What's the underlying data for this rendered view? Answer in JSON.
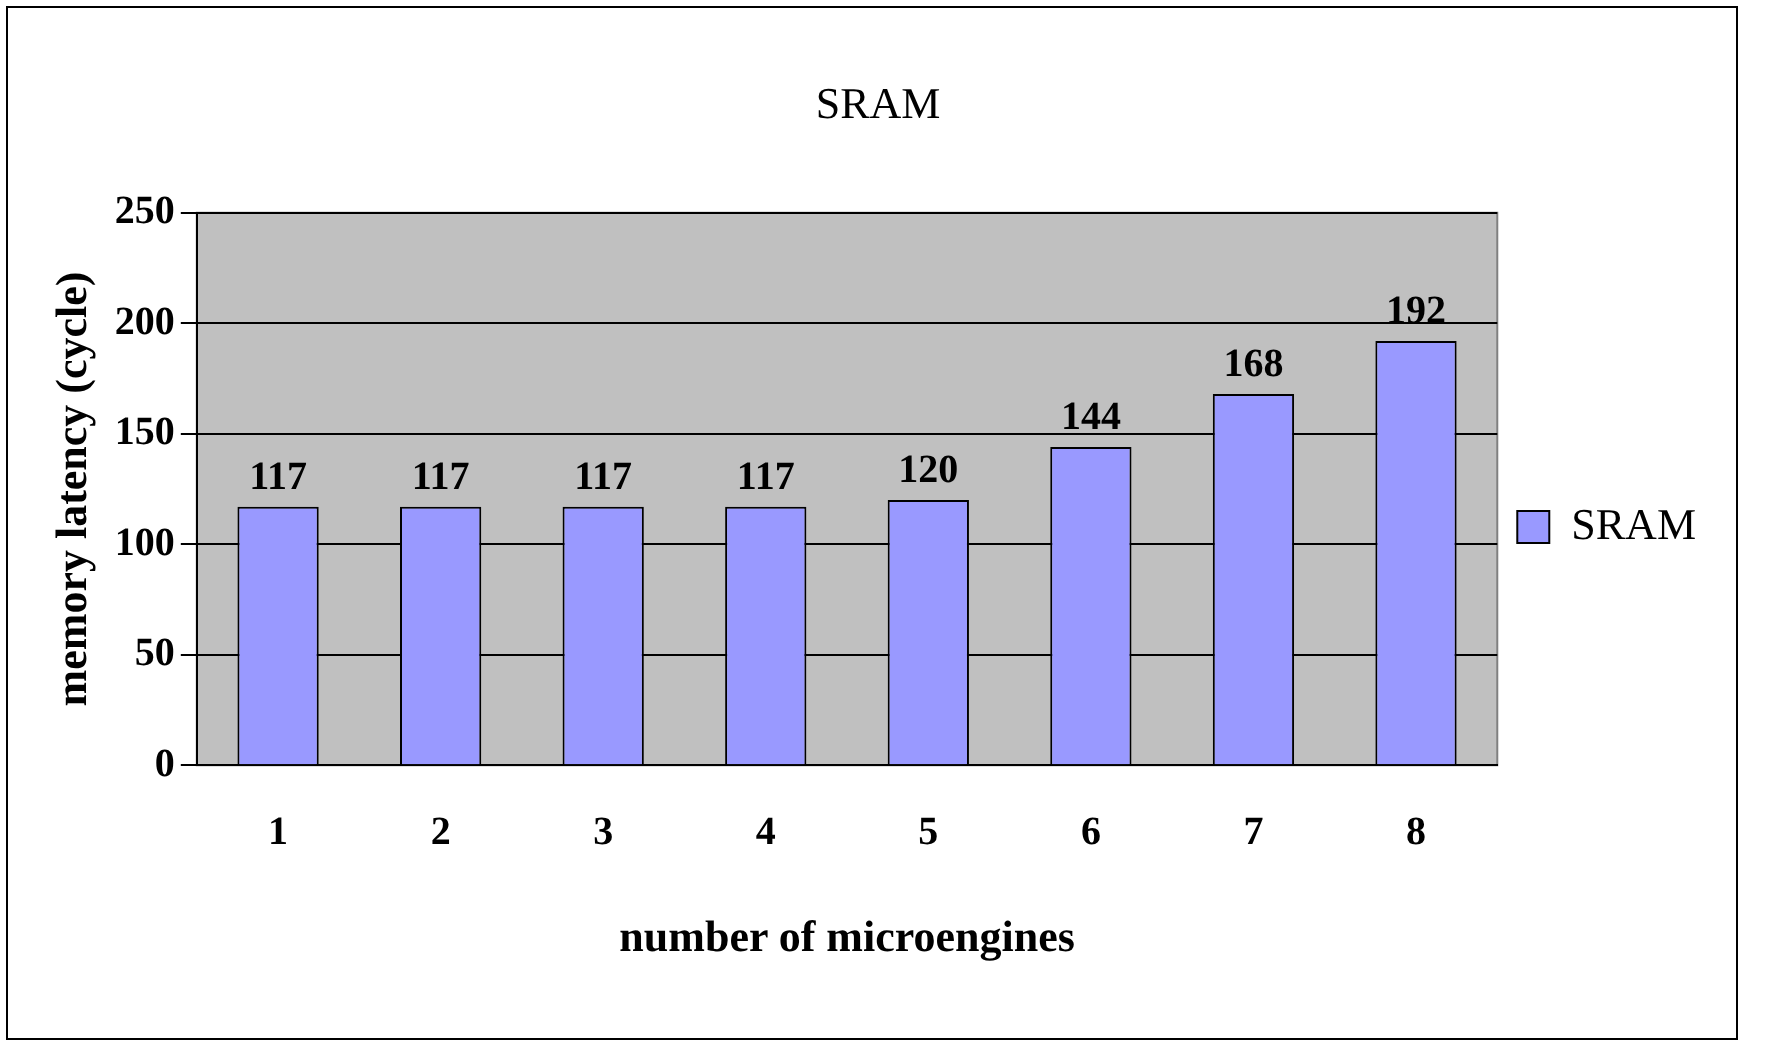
{
  "chart_data": {
    "type": "bar",
    "title": "SRAM",
    "xlabel": "number of microengines",
    "ylabel": "memory latency (cycle)",
    "categories": [
      "1",
      "2",
      "3",
      "4",
      "5",
      "6",
      "7",
      "8"
    ],
    "series": [
      {
        "name": "SRAM",
        "color": "#9999ff",
        "values": [
          117,
          117,
          117,
          117,
          120,
          144,
          168,
          192
        ]
      }
    ],
    "ylim": [
      0,
      250
    ],
    "yticks": [
      0,
      50,
      100,
      150,
      200,
      250
    ],
    "grid": "y",
    "legend": "right",
    "data_labels": true
  }
}
